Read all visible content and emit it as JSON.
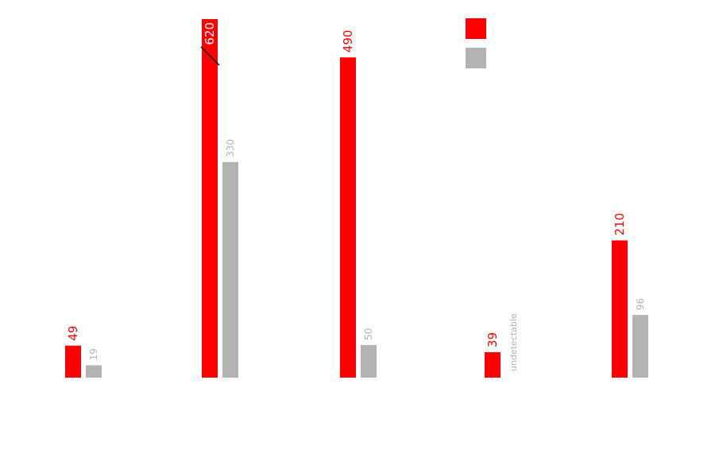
{
  "chart_data": {
    "type": "bar",
    "categories": [
      "",
      "",
      "",
      "",
      ""
    ],
    "series": [
      {
        "values": [
          49,
          620,
          490,
          39,
          210
        ],
        "labels": [
          "49",
          "620",
          "490",
          "39",
          "210"
        ],
        "color": "#ff0000"
      },
      {
        "values": [
          19,
          330,
          50,
          null,
          96
        ],
        "labels": [
          "19",
          "330",
          "50",
          "undetectable",
          "96"
        ],
        "color": "#b3b3b3"
      }
    ],
    "axis_break": {
      "category_index": 1,
      "series_index": 0
    },
    "legend": {
      "placement": "top-right",
      "entries": 2
    },
    "grid": false
  }
}
